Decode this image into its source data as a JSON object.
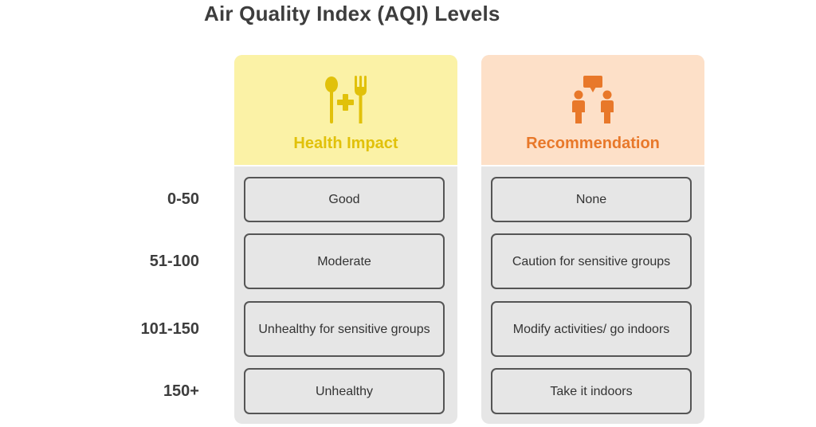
{
  "title": "Air Quality Index (AQI) Levels",
  "rows": [
    "0-50",
    "51-100",
    "101-150",
    "150+"
  ],
  "columns": [
    {
      "header": "Health Impact",
      "icon": "food-health-icon",
      "header_color": "#fbf2a6",
      "accent_color": "#e1c10a",
      "cells": [
        "Good",
        "Moderate",
        "Unhealthy for sensitive groups",
        "Unhealthy"
      ]
    },
    {
      "header": "Recommendation",
      "icon": "people-talking-icon",
      "header_color": "#fde0c8",
      "accent_color": "#e8782a",
      "cells": [
        "None",
        "Caution for sensitive groups",
        "Modify activities/ go indoors",
        "Take it indoors"
      ]
    }
  ]
}
